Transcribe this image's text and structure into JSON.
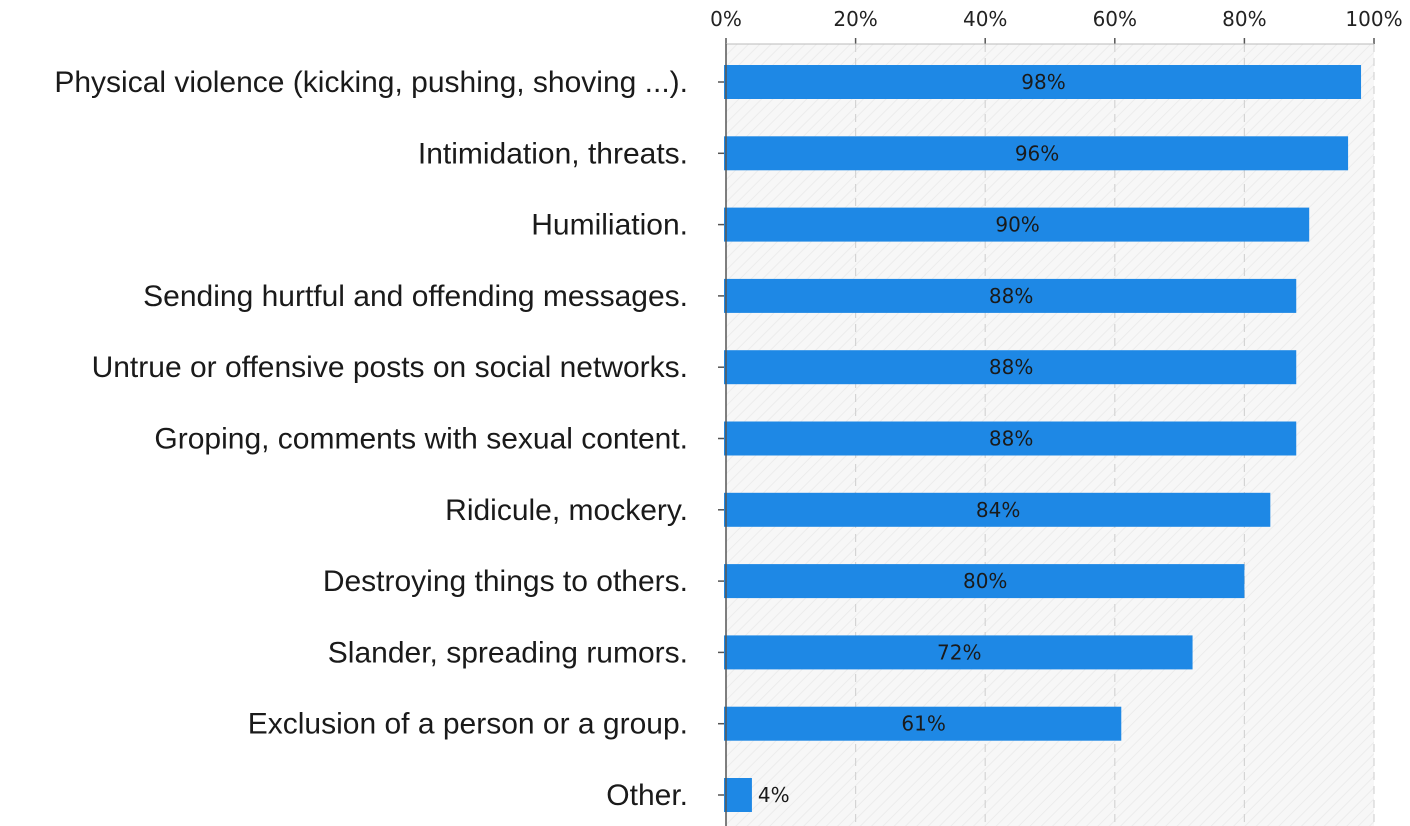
{
  "chart_data": {
    "type": "bar",
    "orientation": "horizontal",
    "title": "",
    "xlabel": "",
    "ylabel": "",
    "xlim": [
      0,
      100
    ],
    "x_ticks": [
      "0%",
      "20%",
      "40%",
      "60%",
      "80%",
      "100%"
    ],
    "x_tick_values": [
      0,
      20,
      40,
      60,
      80,
      100
    ],
    "tick_position": "top",
    "grid": true,
    "categories": [
      "Physical violence (kicking, pushing, shoving ...).",
      "Intimidation, threats.",
      "Humiliation.",
      "Sending hurtful and offending messages.",
      "Untrue or offensive posts on social networks.",
      "Groping, comments with sexual content.",
      "Ridicule, mockery.",
      "Destroying things to others.",
      "Slander, spreading rumors.",
      "Exclusion of a person or a group.",
      "Other."
    ],
    "values": [
      98,
      96,
      90,
      88,
      88,
      88,
      84,
      80,
      72,
      61,
      4
    ],
    "data_labels": [
      "98%",
      "96%",
      "90%",
      "88%",
      "88%",
      "88%",
      "84%",
      "80%",
      "72%",
      "61%",
      "4%"
    ],
    "bar_color": "#1e88e5",
    "plot_background": "#f6f6f6"
  }
}
